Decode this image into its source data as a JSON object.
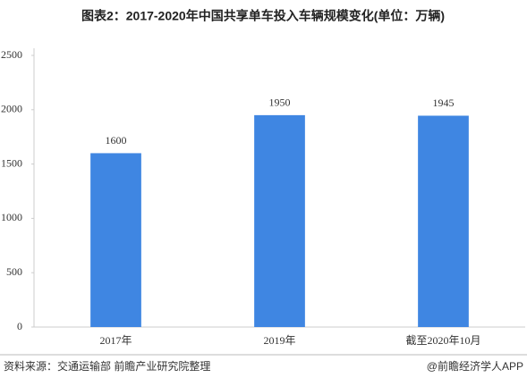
{
  "chart_data": {
    "type": "bar",
    "title": "图表2：2017-2020年中国共享单车投入车辆规模变化(单位：万辆)",
    "categories": [
      "2017年",
      "2019年",
      "截至2020年10月"
    ],
    "values": [
      1600,
      1950,
      1945
    ],
    "color": "#3f86e2",
    "ylim": [
      0,
      2500
    ],
    "yticks": [
      0,
      500,
      1000,
      1500,
      2000,
      2500
    ],
    "grid": false,
    "source": "资料来源：交通运输部 前瞻产业研究院整理",
    "credit": "@前瞻经济学人APP"
  }
}
